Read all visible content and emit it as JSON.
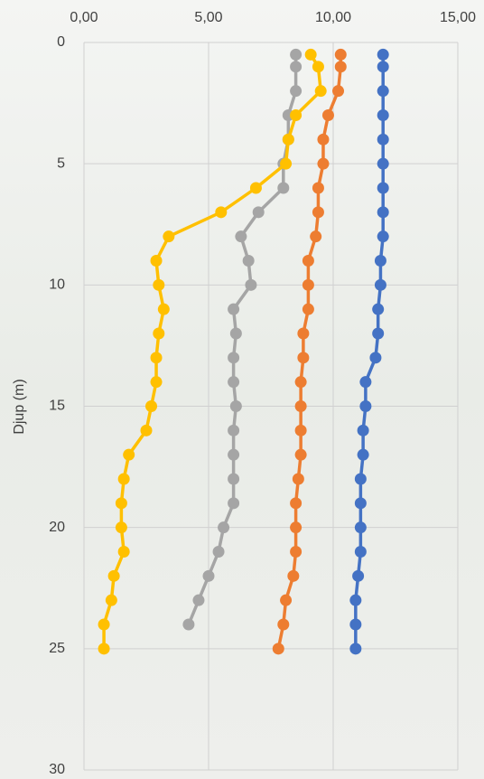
{
  "chart_data": {
    "type": "line",
    "y_label": "Djup (m)",
    "y": [
      0.5,
      1,
      2,
      3,
      4,
      5,
      6,
      7,
      8,
      9,
      10,
      11,
      12,
      13,
      14,
      15,
      16,
      17,
      18,
      19,
      20,
      21,
      22,
      23,
      24,
      25
    ],
    "series": [
      {
        "color": "#4472c4",
        "values": [
          12.0,
          12.0,
          12.0,
          12.0,
          12.0,
          12.0,
          12.0,
          12.0,
          12.0,
          11.9,
          11.9,
          11.8,
          11.8,
          11.7,
          11.3,
          11.3,
          11.2,
          11.2,
          11.1,
          11.1,
          11.1,
          11.1,
          11.0,
          10.9,
          10.9,
          10.9
        ]
      },
      {
        "color": "#ed7d31",
        "values": [
          10.3,
          10.3,
          10.2,
          9.8,
          9.6,
          9.6,
          9.4,
          9.4,
          9.3,
          9.0,
          9.0,
          9.0,
          8.8,
          8.8,
          8.7,
          8.7,
          8.7,
          8.7,
          8.6,
          8.5,
          8.5,
          8.5,
          8.4,
          8.1,
          8.0,
          7.8
        ]
      },
      {
        "color": "#a5a5a5",
        "values": [
          8.5,
          8.5,
          8.5,
          8.2,
          8.2,
          8.0,
          8.0,
          7.0,
          6.3,
          6.6,
          6.7,
          6.0,
          6.1,
          6.0,
          6.0,
          6.1,
          6.0,
          6.0,
          6.0,
          6.0,
          5.6,
          5.4,
          5.0,
          4.6,
          4.2,
          null
        ]
      },
      {
        "color": "#ffc000",
        "values": [
          9.1,
          9.4,
          9.5,
          8.5,
          8.2,
          8.1,
          6.9,
          5.5,
          3.4,
          2.9,
          3.0,
          3.2,
          3.0,
          2.9,
          2.9,
          2.7,
          2.5,
          1.8,
          1.6,
          1.5,
          1.5,
          1.6,
          1.2,
          1.1,
          0.8,
          0.8
        ]
      }
    ],
    "xlim": [
      0,
      15
    ],
    "xticks": [
      {
        "value": 0,
        "label": "0,00"
      },
      {
        "value": 5,
        "label": "5,00"
      },
      {
        "value": 10,
        "label": "10,00"
      },
      {
        "value": 15,
        "label": "15,00"
      }
    ],
    "ylim": [
      0,
      30
    ],
    "yticks": [
      0,
      5,
      10,
      15,
      20,
      25,
      30
    ],
    "y_inverted": true,
    "grid": true
  }
}
